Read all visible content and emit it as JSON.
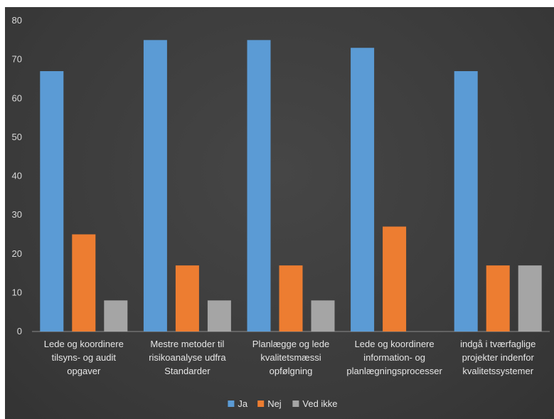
{
  "chart_data": {
    "type": "bar",
    "categories": [
      [
        "Lede og koordinere",
        "tilsyns- og audit",
        "opgaver"
      ],
      [
        "Mestre metoder til",
        "risikoanalyse udfra",
        "Standarder"
      ],
      [
        "Planlægge og lede",
        "kvalitetsmæssi",
        "opfølgning"
      ],
      [
        "Lede og koordinere",
        "information- og",
        "planlægningsprocesser"
      ],
      [
        "indgå i tværfaglige",
        "projekter indenfor",
        "kvalitetssystemer"
      ]
    ],
    "series": [
      {
        "name": "Ja",
        "color": "#5b9bd5",
        "values": [
          67,
          75,
          75,
          73,
          67
        ]
      },
      {
        "name": "Nej",
        "color": "#ed7d31",
        "values": [
          25,
          17,
          17,
          27,
          17
        ]
      },
      {
        "name": "Ved ikke",
        "color": "#a5a5a5",
        "values": [
          8,
          8,
          8,
          0,
          17
        ]
      }
    ],
    "ylim": [
      0,
      80
    ],
    "yticks": [
      0,
      10,
      20,
      30,
      40,
      50,
      60,
      70,
      80
    ],
    "grid": false,
    "legend_position": "bottom"
  }
}
